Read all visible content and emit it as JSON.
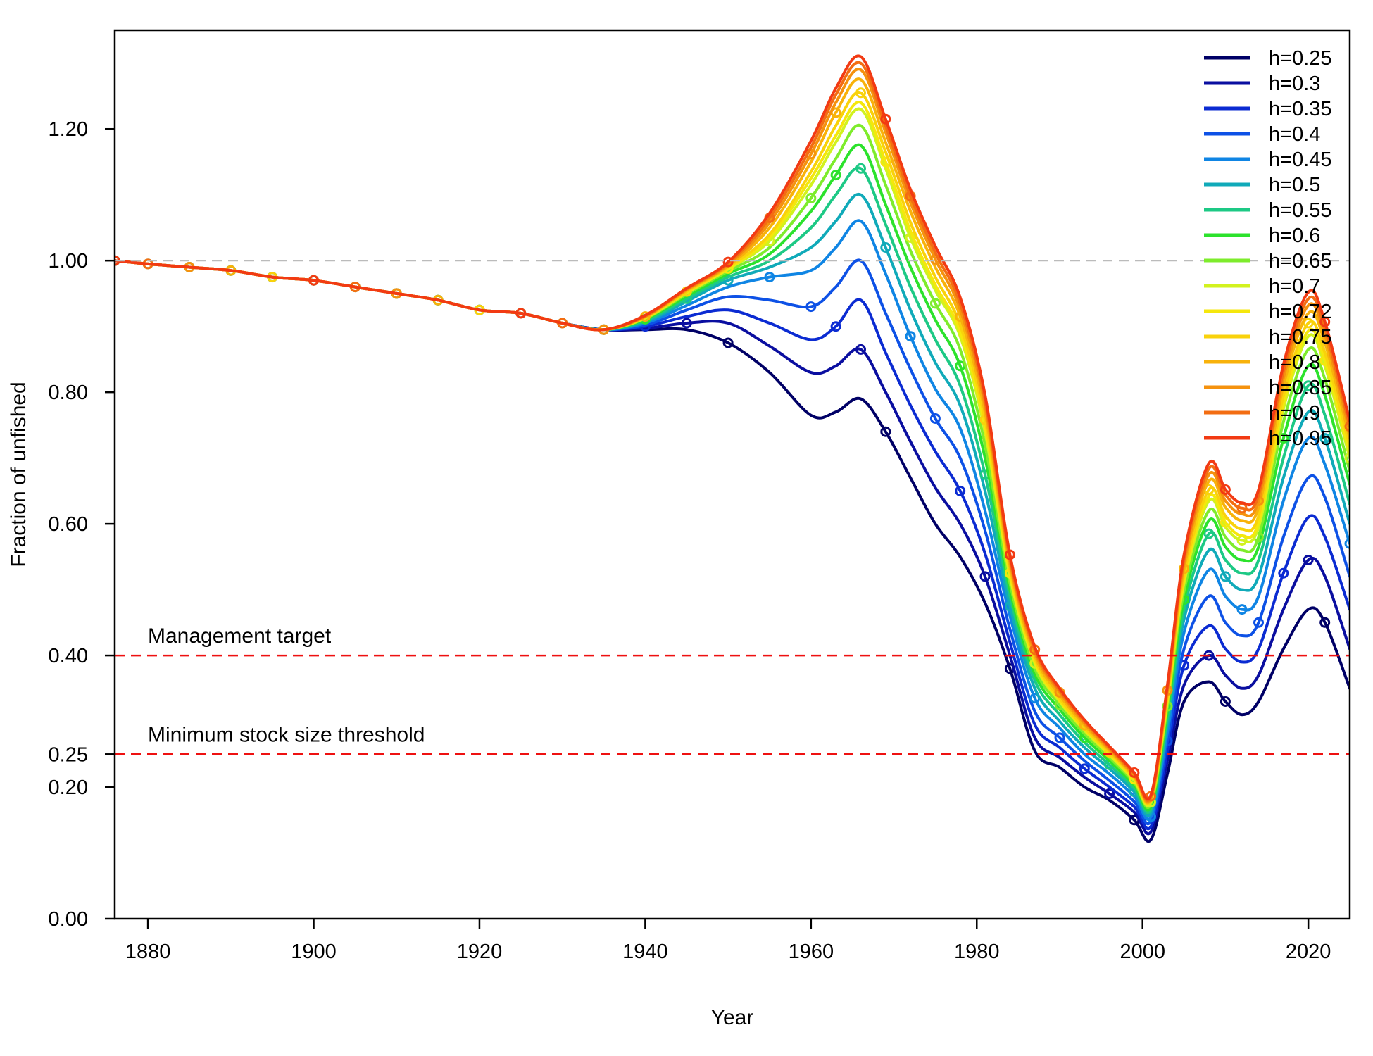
{
  "chart_data": {
    "type": "line",
    "title": "",
    "xlabel": "Year",
    "ylabel": "Fraction of unfished",
    "xlim": [
      1876,
      2025
    ],
    "ylim": [
      0,
      1.35
    ],
    "xticks": [
      1880,
      1900,
      1920,
      1940,
      1960,
      1980,
      2000,
      2020
    ],
    "xtick_labels": [
      "1880",
      "1900",
      "1920",
      "1940",
      "1960",
      "1980",
      "2000",
      "2020"
    ],
    "yticks": [
      0.0,
      0.2,
      0.25,
      0.4,
      0.6,
      0.8,
      1.0,
      1.2
    ],
    "ytick_labels": [
      "0.00",
      "0.20",
      "0.25",
      "0.40",
      "0.60",
      "0.80",
      "1.00",
      "1.20"
    ],
    "grid": false,
    "legend_position": "top-right",
    "reference_lines": [
      {
        "y": 1.0,
        "color": "#bbbbbb",
        "style": "dashed",
        "label": ""
      },
      {
        "y": 0.4,
        "color": "#ee1111",
        "style": "dashed",
        "label": "Management target"
      },
      {
        "y": 0.25,
        "color": "#ee1111",
        "style": "dashed",
        "label": "Minimum stock size threshold"
      }
    ],
    "x": [
      1876,
      1880,
      1885,
      1890,
      1895,
      1900,
      1905,
      1910,
      1915,
      1920,
      1925,
      1930,
      1935,
      1940,
      1945,
      1950,
      1955,
      1960,
      1963,
      1966,
      1969,
      1972,
      1975,
      1978,
      1981,
      1984,
      1987,
      1990,
      1993,
      1996,
      1999,
      2001,
      2003,
      2005,
      2008,
      2010,
      2012,
      2014,
      2017,
      2020,
      2022,
      2025
    ],
    "series": [
      {
        "name": "h=0.25",
        "color": "#000066",
        "values": [
          1.0,
          0.995,
          0.99,
          0.985,
          0.975,
          0.97,
          0.96,
          0.95,
          0.94,
          0.925,
          0.92,
          0.905,
          0.895,
          0.895,
          0.895,
          0.875,
          0.83,
          0.765,
          0.77,
          0.79,
          0.74,
          0.67,
          0.6,
          0.55,
          0.48,
          0.38,
          0.255,
          0.23,
          0.2,
          0.18,
          0.15,
          0.12,
          0.22,
          0.33,
          0.36,
          0.33,
          0.31,
          0.33,
          0.41,
          0.47,
          0.45,
          0.35
        ]
      },
      {
        "name": "h=0.3",
        "color": "#0a0ea0",
        "values": [
          1.0,
          0.995,
          0.99,
          0.985,
          0.975,
          0.97,
          0.96,
          0.95,
          0.94,
          0.925,
          0.92,
          0.905,
          0.895,
          0.897,
          0.905,
          0.905,
          0.87,
          0.83,
          0.84,
          0.865,
          0.8,
          0.725,
          0.655,
          0.6,
          0.52,
          0.4,
          0.275,
          0.245,
          0.215,
          0.19,
          0.162,
          0.132,
          0.24,
          0.355,
          0.4,
          0.37,
          0.35,
          0.37,
          0.47,
          0.545,
          0.52,
          0.41
        ]
      },
      {
        "name": "h=0.35",
        "color": "#0b2bd2",
        "values": [
          1.0,
          0.995,
          0.99,
          0.985,
          0.975,
          0.97,
          0.96,
          0.95,
          0.94,
          0.925,
          0.92,
          0.905,
          0.895,
          0.9,
          0.915,
          0.925,
          0.905,
          0.88,
          0.9,
          0.94,
          0.86,
          0.78,
          0.71,
          0.65,
          0.555,
          0.42,
          0.295,
          0.26,
          0.228,
          0.2,
          0.17,
          0.14,
          0.255,
          0.385,
          0.445,
          0.41,
          0.39,
          0.41,
          0.525,
          0.61,
          0.58,
          0.47
        ]
      },
      {
        "name": "h=0.4",
        "color": "#0d51e6",
        "values": [
          1.0,
          0.995,
          0.99,
          0.985,
          0.975,
          0.97,
          0.96,
          0.95,
          0.94,
          0.925,
          0.92,
          0.905,
          0.895,
          0.902,
          0.925,
          0.945,
          0.94,
          0.93,
          0.96,
          1.0,
          0.92,
          0.835,
          0.76,
          0.7,
          0.59,
          0.44,
          0.315,
          0.275,
          0.24,
          0.21,
          0.178,
          0.148,
          0.27,
          0.41,
          0.49,
          0.45,
          0.43,
          0.45,
          0.58,
          0.67,
          0.64,
          0.52
        ]
      },
      {
        "name": "h=0.45",
        "color": "#0f85e4",
        "values": [
          1.0,
          0.995,
          0.99,
          0.985,
          0.975,
          0.97,
          0.96,
          0.95,
          0.94,
          0.925,
          0.92,
          0.905,
          0.895,
          0.905,
          0.932,
          0.96,
          0.975,
          0.985,
          1.02,
          1.06,
          0.98,
          0.885,
          0.805,
          0.745,
          0.62,
          0.46,
          0.335,
          0.29,
          0.25,
          0.22,
          0.186,
          0.155,
          0.283,
          0.435,
          0.53,
          0.49,
          0.47,
          0.49,
          0.635,
          0.73,
          0.69,
          0.57
        ]
      },
      {
        "name": "h=0.5",
        "color": "#10aab9",
        "values": [
          1.0,
          0.995,
          0.99,
          0.985,
          0.975,
          0.97,
          0.96,
          0.95,
          0.94,
          0.925,
          0.92,
          0.905,
          0.895,
          0.907,
          0.938,
          0.97,
          0.99,
          1.02,
          1.06,
          1.1,
          1.02,
          0.925,
          0.845,
          0.78,
          0.65,
          0.475,
          0.35,
          0.3,
          0.26,
          0.228,
          0.193,
          0.161,
          0.295,
          0.455,
          0.56,
          0.52,
          0.5,
          0.52,
          0.67,
          0.77,
          0.73,
          0.6
        ]
      },
      {
        "name": "h=0.55",
        "color": "#1dc985",
        "values": [
          1.0,
          0.995,
          0.99,
          0.985,
          0.975,
          0.97,
          0.96,
          0.95,
          0.94,
          0.925,
          0.92,
          0.905,
          0.895,
          0.909,
          0.942,
          0.975,
          1.0,
          1.05,
          1.1,
          1.14,
          1.055,
          0.96,
          0.88,
          0.81,
          0.675,
          0.49,
          0.362,
          0.31,
          0.268,
          0.234,
          0.198,
          0.166,
          0.305,
          0.47,
          0.585,
          0.545,
          0.525,
          0.545,
          0.7,
          0.81,
          0.765,
          0.63
        ]
      },
      {
        "name": "h=0.6",
        "color": "#2ce22c",
        "values": [
          1.0,
          0.995,
          0.99,
          0.985,
          0.975,
          0.97,
          0.96,
          0.95,
          0.94,
          0.925,
          0.92,
          0.905,
          0.895,
          0.911,
          0.946,
          0.98,
          1.01,
          1.075,
          1.13,
          1.175,
          1.085,
          0.99,
          0.91,
          0.84,
          0.7,
          0.5,
          0.372,
          0.318,
          0.275,
          0.24,
          0.203,
          0.17,
          0.315,
          0.485,
          0.605,
          0.565,
          0.545,
          0.565,
          0.73,
          0.84,
          0.795,
          0.66
        ]
      },
      {
        "name": "h=0.65",
        "color": "#7eec2c",
        "values": [
          1.0,
          0.995,
          0.99,
          0.985,
          0.975,
          0.97,
          0.96,
          0.95,
          0.94,
          0.925,
          0.92,
          0.905,
          0.895,
          0.912,
          0.949,
          0.984,
          1.02,
          1.095,
          1.155,
          1.205,
          1.115,
          1.015,
          0.935,
          0.865,
          0.72,
          0.51,
          0.38,
          0.325,
          0.281,
          0.245,
          0.207,
          0.174,
          0.323,
          0.498,
          0.62,
          0.58,
          0.56,
          0.58,
          0.755,
          0.865,
          0.82,
          0.68
        ]
      },
      {
        "name": "h=0.7",
        "color": "#d2f21e",
        "values": [
          1.0,
          0.995,
          0.99,
          0.985,
          0.975,
          0.97,
          0.96,
          0.95,
          0.94,
          0.925,
          0.92,
          0.905,
          0.895,
          0.913,
          0.951,
          0.987,
          1.03,
          1.115,
          1.18,
          1.23,
          1.14,
          1.035,
          0.955,
          0.885,
          0.74,
          0.52,
          0.388,
          0.33,
          0.286,
          0.249,
          0.21,
          0.177,
          0.33,
          0.51,
          0.635,
          0.595,
          0.575,
          0.595,
          0.775,
          0.885,
          0.84,
          0.7
        ]
      },
      {
        "name": "h=0.72",
        "color": "#f5e70c",
        "values": [
          1.0,
          0.995,
          0.99,
          0.985,
          0.975,
          0.97,
          0.96,
          0.95,
          0.94,
          0.925,
          0.92,
          0.905,
          0.895,
          0.913,
          0.952,
          0.988,
          1.035,
          1.125,
          1.19,
          1.24,
          1.15,
          1.045,
          0.963,
          0.892,
          0.748,
          0.525,
          0.391,
          0.332,
          0.288,
          0.251,
          0.212,
          0.179,
          0.333,
          0.515,
          0.642,
          0.602,
          0.582,
          0.602,
          0.783,
          0.893,
          0.848,
          0.708
        ]
      },
      {
        "name": "h=0.75",
        "color": "#f9d20b",
        "values": [
          1.0,
          0.995,
          0.99,
          0.985,
          0.975,
          0.97,
          0.96,
          0.95,
          0.94,
          0.925,
          0.92,
          0.905,
          0.895,
          0.914,
          0.953,
          0.99,
          1.04,
          1.135,
          1.205,
          1.255,
          1.165,
          1.058,
          0.975,
          0.902,
          0.758,
          0.53,
          0.395,
          0.335,
          0.29,
          0.253,
          0.214,
          0.18,
          0.338,
          0.522,
          0.652,
          0.612,
          0.592,
          0.612,
          0.795,
          0.905,
          0.86,
          0.718
        ]
      },
      {
        "name": "h=0.8",
        "color": "#f8b20b",
        "values": [
          1.0,
          0.995,
          0.99,
          0.985,
          0.975,
          0.97,
          0.96,
          0.95,
          0.94,
          0.925,
          0.92,
          0.905,
          0.895,
          0.915,
          0.955,
          0.992,
          1.05,
          1.15,
          1.225,
          1.275,
          1.18,
          1.075,
          0.99,
          0.915,
          0.77,
          0.537,
          0.4,
          0.34,
          0.294,
          0.256,
          0.216,
          0.182,
          0.343,
          0.532,
          0.665,
          0.625,
          0.605,
          0.625,
          0.81,
          0.92,
          0.875,
          0.73
        ]
      },
      {
        "name": "h=0.85",
        "color": "#f5920e",
        "values": [
          1.0,
          0.995,
          0.99,
          0.985,
          0.975,
          0.97,
          0.96,
          0.95,
          0.94,
          0.925,
          0.92,
          0.905,
          0.895,
          0.915,
          0.956,
          0.994,
          1.058,
          1.162,
          1.24,
          1.29,
          1.195,
          1.088,
          1.002,
          0.926,
          0.78,
          0.543,
          0.405,
          0.344,
          0.297,
          0.258,
          0.218,
          0.184,
          0.347,
          0.54,
          0.675,
          0.635,
          0.615,
          0.635,
          0.822,
          0.932,
          0.887,
          0.74
        ]
      },
      {
        "name": "h=0.9",
        "color": "#f36d12",
        "values": [
          1.0,
          0.995,
          0.99,
          0.985,
          0.975,
          0.97,
          0.96,
          0.95,
          0.94,
          0.925,
          0.92,
          0.905,
          0.895,
          0.916,
          0.957,
          0.996,
          1.065,
          1.172,
          1.252,
          1.3,
          1.205,
          1.098,
          1.012,
          0.935,
          0.788,
          0.548,
          0.409,
          0.347,
          0.3,
          0.26,
          0.22,
          0.186,
          0.351,
          0.547,
          0.684,
          0.644,
          0.624,
          0.644,
          0.832,
          0.942,
          0.897,
          0.748
        ]
      },
      {
        "name": "h=0.95",
        "color": "#f23a13",
        "values": [
          1.0,
          0.995,
          0.99,
          0.985,
          0.975,
          0.97,
          0.96,
          0.95,
          0.94,
          0.925,
          0.92,
          0.905,
          0.895,
          0.917,
          0.958,
          0.998,
          1.072,
          1.182,
          1.262,
          1.31,
          1.215,
          1.108,
          1.022,
          0.944,
          0.796,
          0.553,
          0.413,
          0.35,
          0.302,
          0.262,
          0.222,
          0.188,
          0.355,
          0.553,
          0.692,
          0.652,
          0.632,
          0.652,
          0.842,
          0.952,
          0.907,
          0.756
        ]
      }
    ]
  }
}
